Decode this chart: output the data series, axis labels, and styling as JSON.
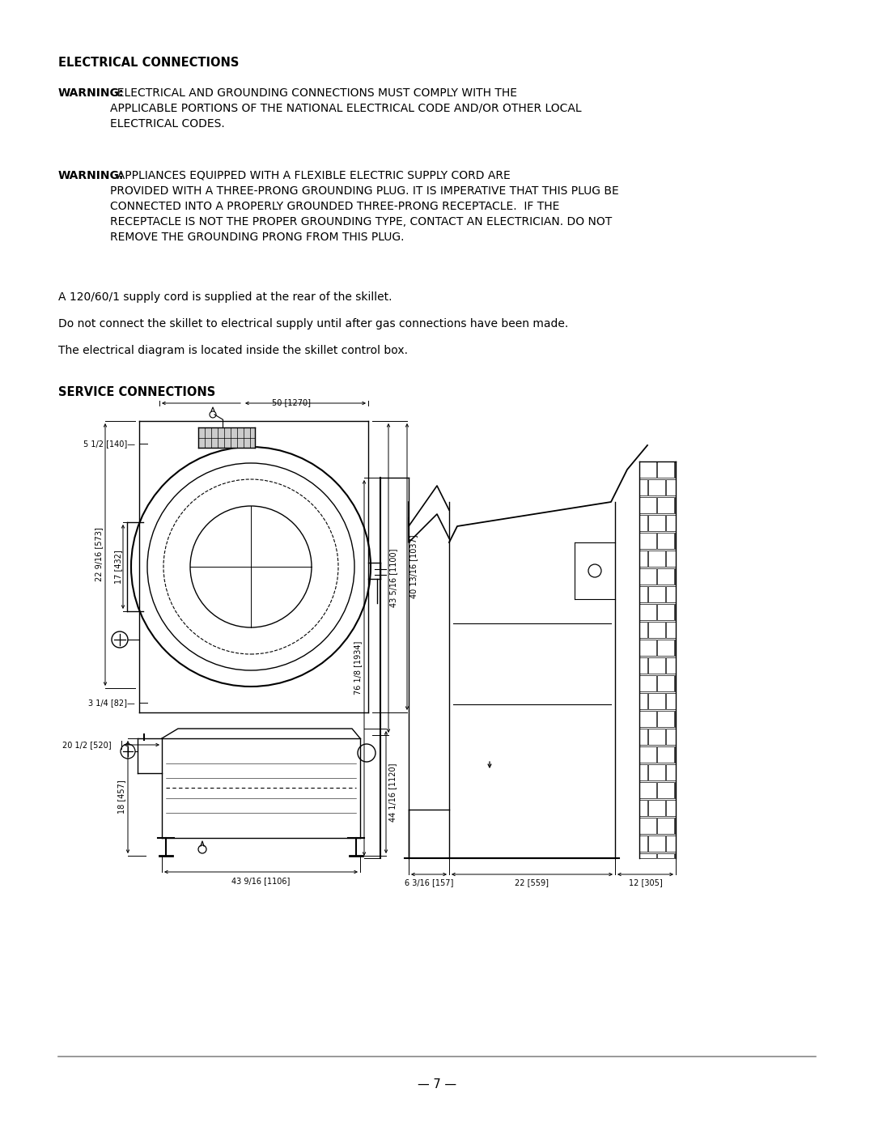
{
  "bg_color": "#ffffff",
  "text_color": "#1a1a1a",
  "heading1": "ELECTRICAL CONNECTIONS",
  "warning1_bold": "WARNING:",
  "warning1_rest": "  ELECTRICAL AND GROUNDING CONNECTIONS MUST COMPLY WITH THE\nAPPLICABLE PORTIONS OF THE NATIONAL ELECTRICAL CODE AND/OR OTHER LOCAL\nELECTRICAL CODES.",
  "warning2_bold": "WARNING:",
  "warning2_rest": "  APPLIANCES EQUIPPED WITH A FLEXIBLE ELECTRIC SUPPLY CORD ARE\nPROVIDED WITH A THREE-PRONG GROUNDING PLUG. IT IS IMPERATIVE THAT THIS PLUG BE\nCONNECTED INTO A PROPERLY GROUNDED THREE-PRONG RECEPTACLE.  IF THE\nRECEPTACLE IS NOT THE PROPER GROUNDING TYPE, CONTACT AN ELECTRICIAN. DO NOT\nREMOVE THE GROUNDING PRONG FROM THIS PLUG.",
  "para1": "A 120/60/1 supply cord is supplied at the rear of the skillet.",
  "para2": "Do not connect the skillet to electrical supply until after gas connections have been made.",
  "para3": "The electrical diagram is located inside the skillet control box.",
  "heading2": "SERVICE CONNECTIONS",
  "page_num": "— 7 —",
  "line_color": "#888888"
}
